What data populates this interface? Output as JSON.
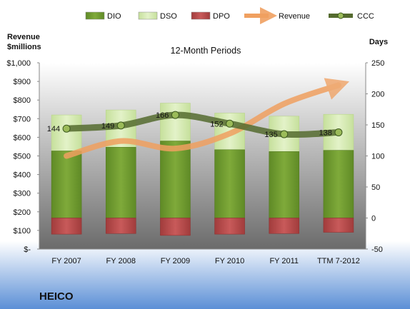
{
  "chart_data": {
    "type": "bar",
    "title": "12-Month Periods",
    "company": "HEICO",
    "left_axis_label": "Revenue\n$millions",
    "right_axis_label": "Days",
    "categories": [
      "FY 2007",
      "FY 2008",
      "FY 2009",
      "FY 2010",
      "FY 2011",
      "TTM 7-2012"
    ],
    "left_axis": {
      "min": 0,
      "max": 1000,
      "step": 100,
      "tick_labels": [
        "$-",
        "$100",
        "$200",
        "$300",
        "$400",
        "$500",
        "$600",
        "$700",
        "$800",
        "$900",
        "$1,000"
      ]
    },
    "right_axis": {
      "min": -50,
      "max": 250,
      "step": 50,
      "tick_labels": [
        "-50",
        "0",
        "50",
        "100",
        "150",
        "200",
        "250"
      ]
    },
    "series": [
      {
        "name": "DIO",
        "kind": "bar",
        "axis": "days",
        "values": [
          108,
          114,
          124,
          110,
          107,
          109
        ],
        "color": "#6f9a2e"
      },
      {
        "name": "DSO",
        "kind": "bar",
        "axis": "days",
        "values": [
          58,
          60,
          61,
          59,
          57,
          58
        ],
        "color": "#d5eab0"
      },
      {
        "name": "DPO",
        "kind": "bar",
        "axis": "days",
        "values": [
          -26,
          -25,
          -28,
          -26,
          -25,
          -23
        ],
        "color": "#b84a4a"
      },
      {
        "name": "Revenue",
        "kind": "line",
        "axis": "revenue",
        "values": [
          500,
          580,
          540,
          620,
          780,
          880
        ],
        "color": "#f0a060"
      },
      {
        "name": "CCC",
        "kind": "line",
        "axis": "days",
        "values": [
          144,
          149,
          166,
          152,
          135,
          138
        ],
        "color": "#556b2f"
      }
    ],
    "data_labels": [
      "144",
      "149",
      "166",
      "152",
      "135",
      "138"
    ],
    "legend_position": "top",
    "grid": false
  }
}
